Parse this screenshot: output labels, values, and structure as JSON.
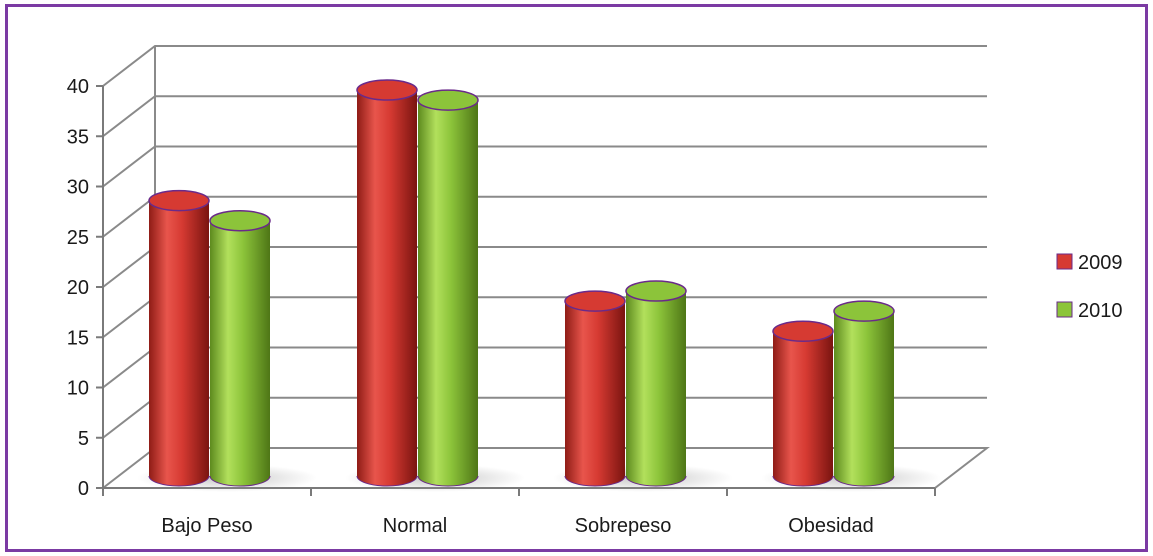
{
  "chart_data": {
    "type": "bar",
    "style": "3d-cylinder",
    "categories": [
      "Bajo Peso",
      "Normal",
      "Sobrepeso",
      "Obesidad"
    ],
    "series": [
      {
        "name": "2009",
        "values": [
          28,
          39,
          18,
          15
        ],
        "color": "#d63a32"
      },
      {
        "name": "2010",
        "values": [
          26,
          38,
          19,
          17
        ],
        "color": "#8cc43a"
      }
    ],
    "y_ticks": [
      "0",
      "5",
      "10",
      "15",
      "20",
      "25",
      "30",
      "35",
      "40"
    ],
    "ylim": [
      0,
      40
    ],
    "grid": true,
    "legend_position": "right",
    "frame_color": "#7b3aa3"
  }
}
